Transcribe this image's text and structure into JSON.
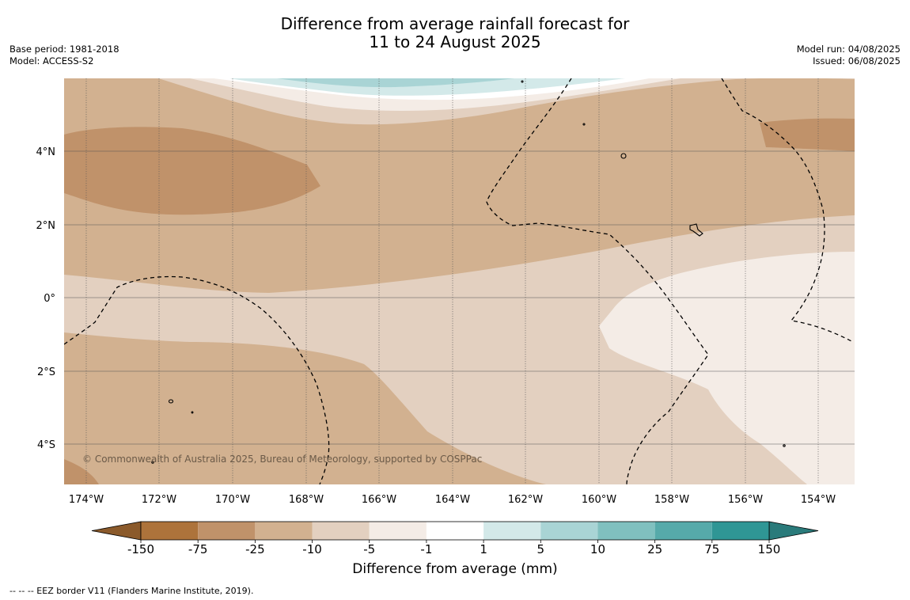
{
  "title_line1": "Difference from average rainfall forecast for",
  "title_line2": "11 to 24 August 2025",
  "base_period": "Base period: 1981-2018",
  "model": "Model: ACCESS-S2",
  "model_run": "Model run: 04/08/2025",
  "issued": "Issued: 06/08/2025",
  "copyright": "© Commonwealth of Australia 2025, Bureau of Meteorology, supported by COSPPac",
  "lat_labels": [
    "4°N",
    "2°N",
    "0°",
    "2°S",
    "4°S"
  ],
  "lon_labels": [
    "174°W",
    "172°W",
    "170°W",
    "168°W",
    "166°W",
    "164°W",
    "162°W",
    "160°W",
    "158°W",
    "156°W",
    "154°W"
  ],
  "colorbar": {
    "title": "Difference from average (mm)",
    "ticks": [
      "-150",
      "-75",
      "-25",
      "-10",
      "-5",
      "-1",
      "1",
      "5",
      "10",
      "25",
      "75",
      "150"
    ],
    "colors": [
      "#ad733b",
      "#c0926a",
      "#d2b190",
      "#e3d0c0",
      "#f4ece6",
      "#ffffff",
      "#d3e9e9",
      "#a9d4d5",
      "#80c0bf",
      "#56aaaa",
      "#2f9695"
    ],
    "under_color": "#8b5a2b",
    "over_color": "#2a7b7b"
  },
  "footnote": "--  --  -- EEZ border V11 (Flanders Marine Institute, 2019)."
}
